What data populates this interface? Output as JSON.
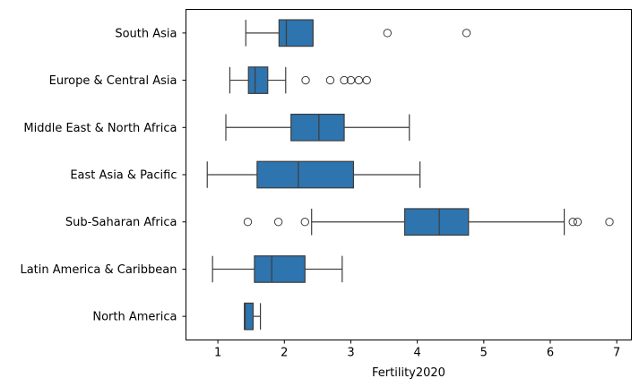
{
  "chart_data": {
    "type": "boxplot",
    "orientation": "horizontal",
    "xlabel": "Fertility2020",
    "ylabel": "",
    "xlim": [
      0.52,
      7.22
    ],
    "xticks": [
      1,
      2,
      3,
      4,
      5,
      6,
      7
    ],
    "grid": false,
    "box_color": "#2e74ae",
    "line_color": "#3d3d3d",
    "categories": [
      "South Asia",
      "Europe & Central Asia",
      "Middle East & North Africa",
      "East Asia & Pacific",
      "Sub-Saharan Africa",
      "Latin America & Caribbean",
      "North America"
    ],
    "boxes": [
      {
        "category": "South Asia",
        "whislo": 1.42,
        "q1": 1.92,
        "med": 2.03,
        "q3": 2.43,
        "whishi": 2.43,
        "fliers": [
          3.55,
          4.74
        ]
      },
      {
        "category": "Europe & Central Asia",
        "whislo": 1.18,
        "q1": 1.46,
        "med": 1.56,
        "q3": 1.75,
        "whishi": 2.02,
        "fliers": [
          2.32,
          2.69,
          2.9,
          3.0,
          3.12,
          3.24
        ]
      },
      {
        "category": "Middle East & North Africa",
        "whislo": 1.12,
        "q1": 2.1,
        "med": 2.52,
        "q3": 2.9,
        "whishi": 3.88,
        "fliers": []
      },
      {
        "category": "East Asia & Pacific",
        "whislo": 0.84,
        "q1": 1.59,
        "med": 2.21,
        "q3": 3.04,
        "whishi": 4.04,
        "fliers": []
      },
      {
        "category": "Sub-Saharan Africa",
        "whislo": 2.41,
        "q1": 3.81,
        "med": 4.33,
        "q3": 4.77,
        "whishi": 6.21,
        "fliers": [
          1.45,
          1.91,
          2.31,
          6.34,
          6.41,
          6.89
        ]
      },
      {
        "category": "Latin America & Caribbean",
        "whislo": 0.92,
        "q1": 1.55,
        "med": 1.81,
        "q3": 2.31,
        "whishi": 2.87,
        "fliers": []
      },
      {
        "category": "North America",
        "whislo": 1.4,
        "q1": 1.4,
        "med": 1.41,
        "q3": 1.53,
        "whishi": 1.64,
        "fliers": []
      }
    ]
  }
}
